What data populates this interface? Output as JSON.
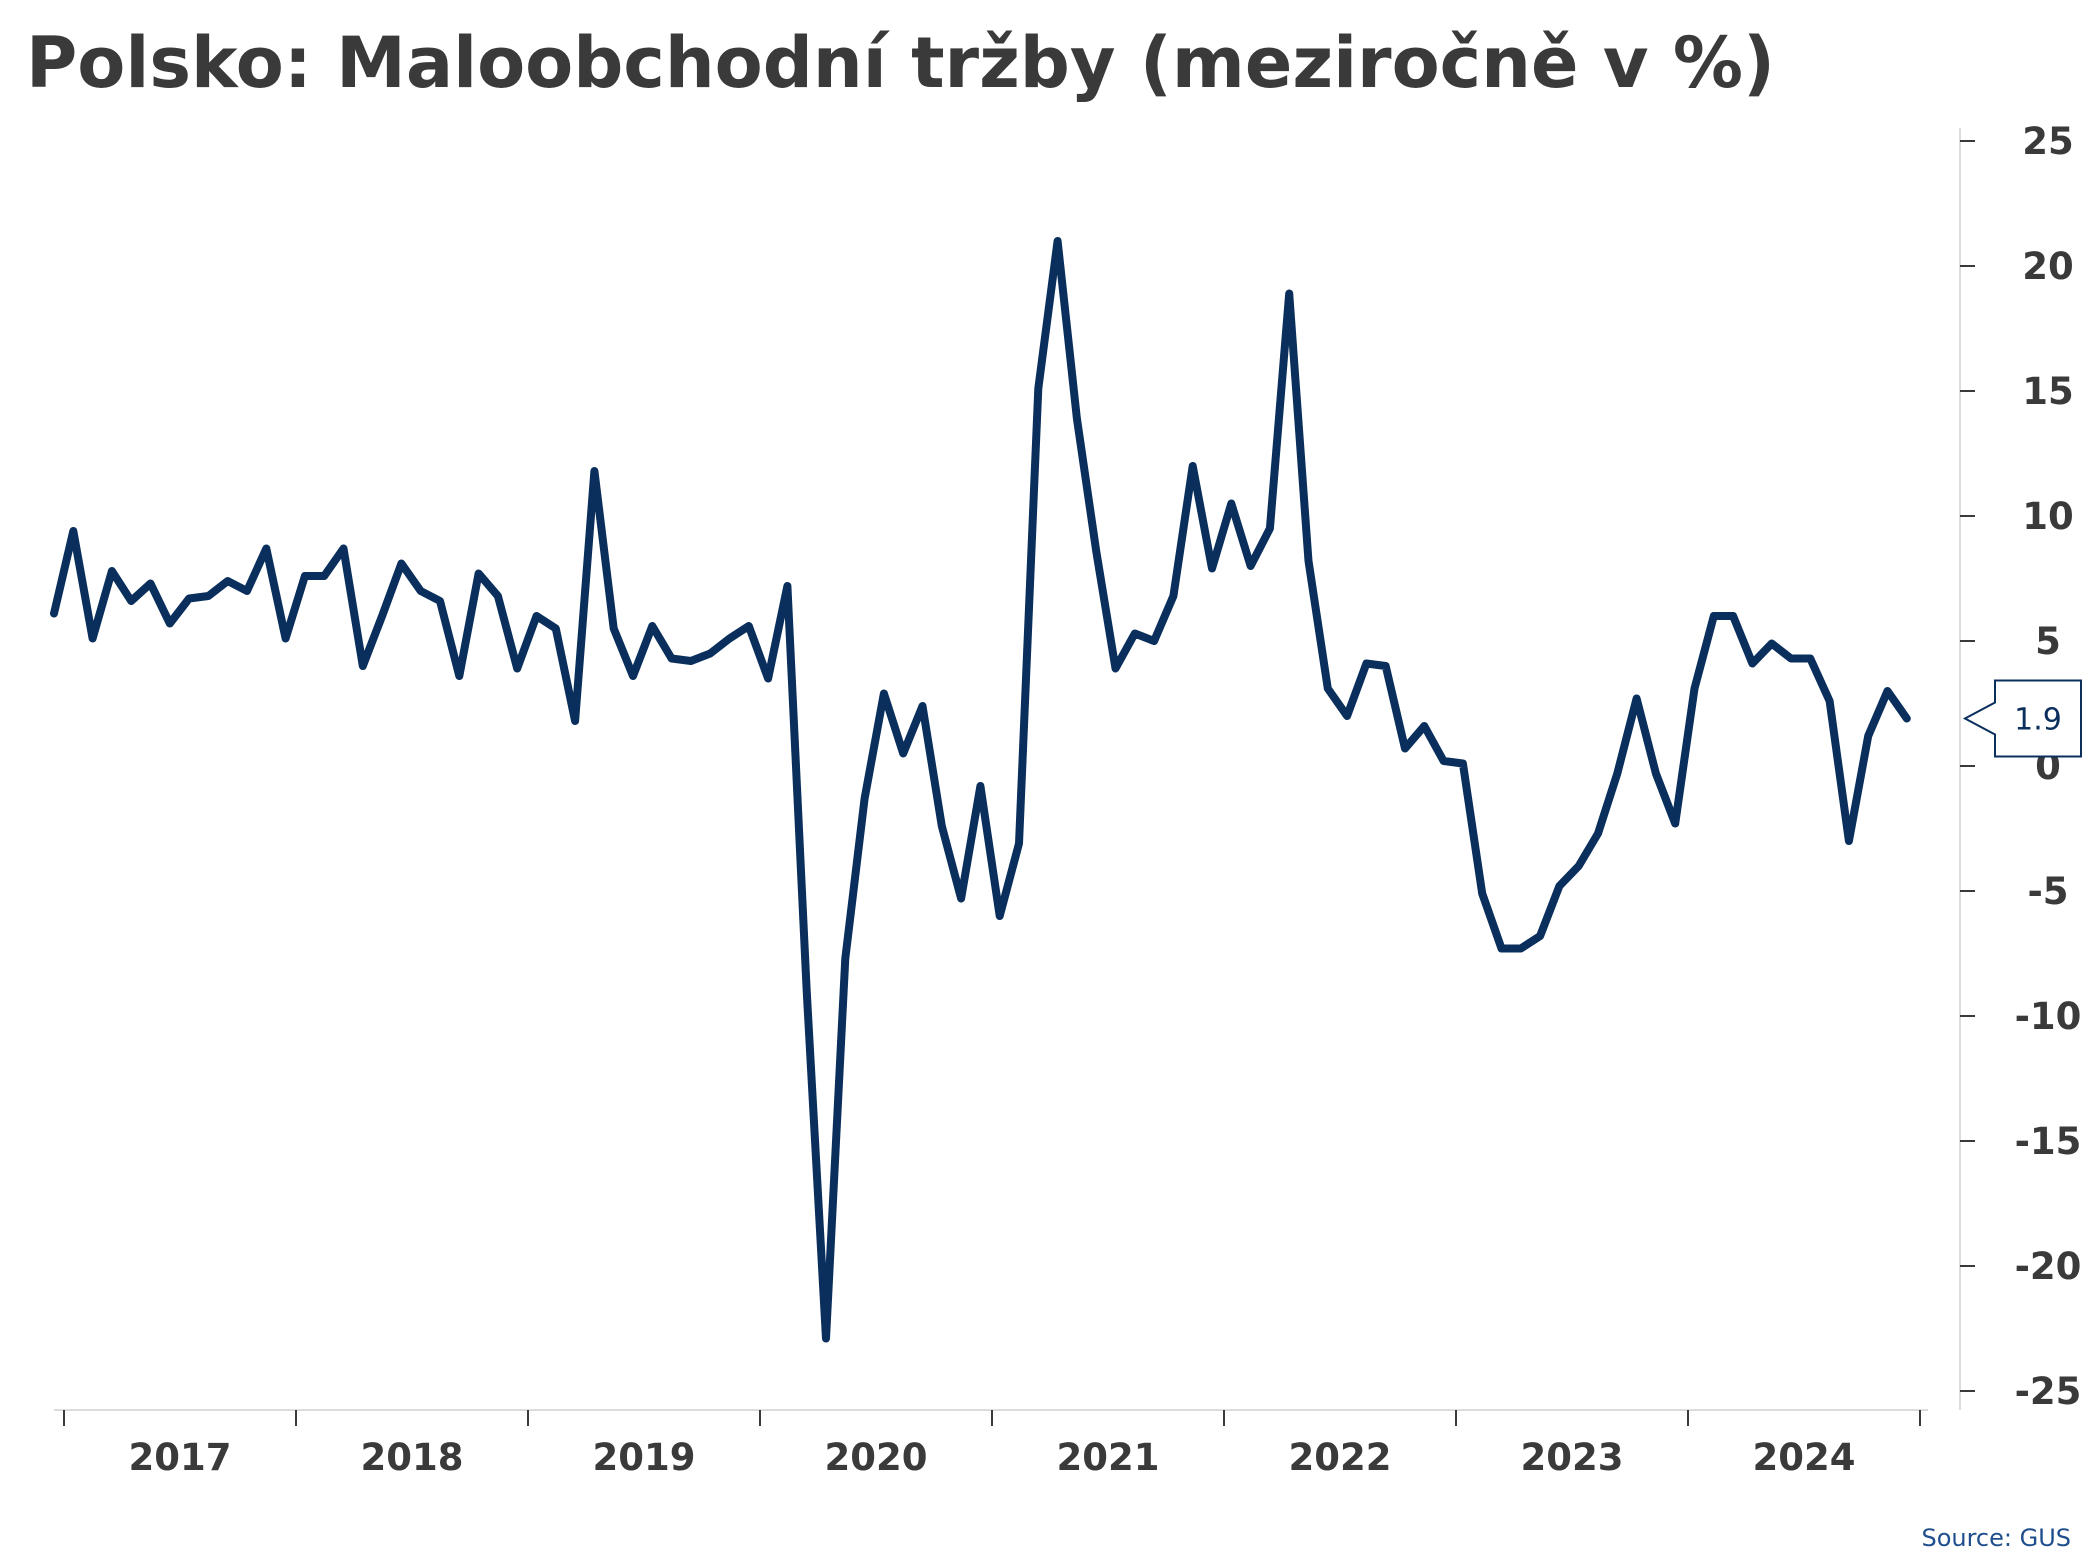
{
  "title": "Polsko: Maloobchodní tržby (meziročně v %)",
  "source": "Source: GUS",
  "colors": {
    "series": "#0a2f5c",
    "text": "#3a3a3a",
    "source": "#1f4e8c"
  },
  "chart_data": {
    "type": "line",
    "title": "Polsko: Maloobchodní tržby (meziročně v %)",
    "xlabel": "",
    "ylabel": "",
    "ylim": [
      -25,
      25
    ],
    "yticks": [
      25,
      20,
      15,
      10,
      5,
      0,
      -5,
      -10,
      -15,
      -20,
      -25
    ],
    "y_axis_position": "right",
    "grid": false,
    "year_labels": [
      "2017",
      "2018",
      "2019",
      "2020",
      "2021",
      "2022",
      "2023",
      "2024"
    ],
    "x_start": "2016-12",
    "x_end": "2024-10",
    "last_value_label": "1.9",
    "series": [
      {
        "values": [
          6.1,
          9.4,
          5.1,
          7.8,
          6.6,
          7.3,
          5.7,
          6.7,
          6.8,
          7.4,
          7.0,
          8.7,
          5.1,
          7.6,
          7.6,
          8.7,
          4.0,
          6.0,
          8.1,
          7.0,
          6.6,
          3.6,
          7.7,
          6.8,
          3.9,
          6.0,
          5.5,
          1.8,
          11.8,
          5.5,
          3.6,
          5.6,
          4.3,
          4.2,
          4.5,
          5.1,
          5.6,
          3.5,
          7.2,
          -9.0,
          -22.9,
          -7.7,
          -1.3,
          2.9,
          0.5,
          2.4,
          -2.4,
          -5.3,
          -0.8,
          -6.0,
          -3.1,
          15.1,
          21.0,
          13.9,
          8.6,
          3.9,
          5.3,
          5.0,
          6.8,
          12.0,
          7.9,
          10.5,
          8.0,
          9.5,
          18.9,
          8.2,
          3.1,
          2.0,
          4.1,
          4.0,
          0.7,
          1.6,
          0.2,
          0.1,
          -5.1,
          -7.3,
          -7.3,
          -6.8,
          -4.8,
          -4.0,
          -2.7,
          -0.3,
          2.7,
          -0.3,
          -2.3,
          3.1,
          6.0,
          6.0,
          4.1,
          4.9,
          4.3,
          4.3,
          2.6,
          -3.0,
          1.2,
          3.0,
          1.9
        ]
      }
    ]
  }
}
